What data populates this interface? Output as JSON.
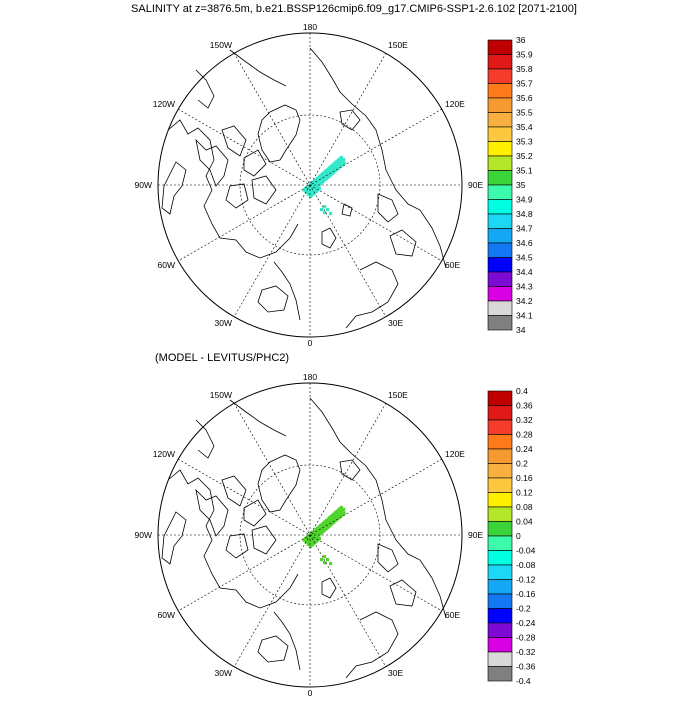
{
  "top_panel": {
    "title": "SALINITY at z=3876.5m, b.e21.BSSP126cmip6.f09_g17.CMIP6-SSP1-2.6.102 [2071-2100]",
    "lon_labels": {
      "top": "180",
      "bottom": "0",
      "left": "90W",
      "right": "90E",
      "ul1": "150W",
      "ul2": "120W",
      "ur1": "150E",
      "ur2": "120E",
      "ll1": "60W",
      "ll2": "30W",
      "lr1": "60E",
      "lr2": "30E"
    },
    "colorbar": {
      "labels": [
        "36",
        "35.9",
        "35.8",
        "35.7",
        "35.6",
        "35.5",
        "35.4",
        "35.3",
        "35.2",
        "35.1",
        "35",
        "34.9",
        "34.8",
        "34.7",
        "34.6",
        "34.5",
        "34.4",
        "34.3",
        "34.2",
        "34.1",
        "34"
      ],
      "colors": [
        "#c00000",
        "#e01818",
        "#f43c2c",
        "#ff7a1a",
        "#f59a30",
        "#f8b040",
        "#fcc840",
        "#fff000",
        "#b4e62a",
        "#3ad43a",
        "#3cfcac",
        "#00ffe0",
        "#1cd8f4",
        "#14a8f4",
        "#1478f4",
        "#0000ff",
        "#7c0ad4",
        "#d800e4",
        "#d8d8d8",
        "#808080"
      ]
    },
    "data_color": "#30e8c8"
  },
  "bottom_panel": {
    "title": "(MODEL - LEVITUS/PHC2)",
    "lon_labels": {
      "top": "180",
      "bottom": "0",
      "left": "90W",
      "right": "90E",
      "ul1": "150W",
      "ul2": "120W",
      "ur1": "150E",
      "ur2": "120E",
      "ll1": "60W",
      "ll2": "30W",
      "lr1": "60E",
      "lr2": "30E"
    },
    "colorbar": {
      "labels": [
        "0.4",
        "0.36",
        "0.32",
        "0.28",
        "0.24",
        "0.2",
        "0.16",
        "0.12",
        "0.08",
        "0.04",
        "0",
        "-0.04",
        "-0.08",
        "-0.12",
        "-0.16",
        "-0.2",
        "-0.24",
        "-0.28",
        "-0.32",
        "-0.36",
        "-0.4"
      ],
      "colors": [
        "#c00000",
        "#e01818",
        "#f43c2c",
        "#ff7a1a",
        "#f59a30",
        "#f8b040",
        "#fcc840",
        "#fff000",
        "#b4e62a",
        "#3ad43a",
        "#3cfcac",
        "#00ffe0",
        "#1cd8f4",
        "#14a8f4",
        "#1478f4",
        "#0000ff",
        "#7c0ad4",
        "#d800e4",
        "#d8d8d8",
        "#808080"
      ]
    },
    "data_color": "#4ed42a"
  }
}
